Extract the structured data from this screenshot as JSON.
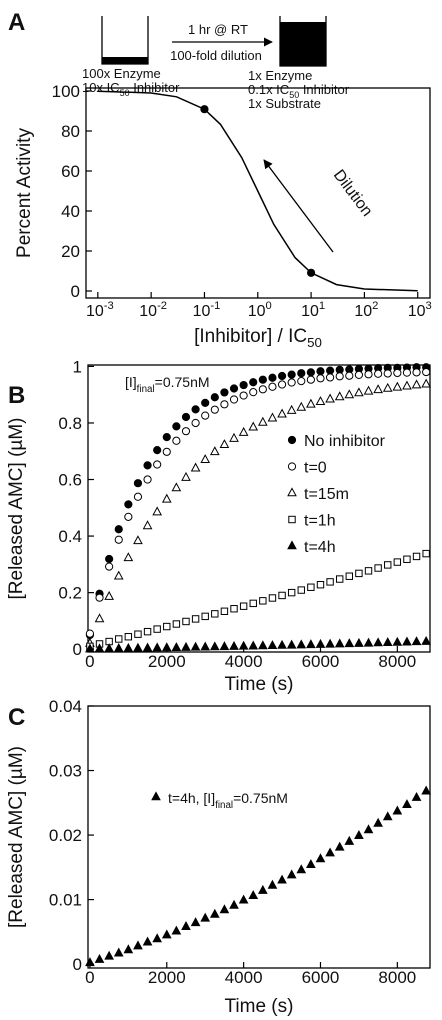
{
  "panel_labels": [
    "A",
    "B",
    "C"
  ],
  "schematic": {
    "arrow_top": "1 hr @ RT",
    "arrow_bottom": "100-fold dilution",
    "left": [
      {
        "text": "100x Enzyme"
      },
      {
        "text": "10x IC",
        "sub": "50",
        "rest": " Inhibitor"
      }
    ],
    "right": [
      {
        "text": "1x Enzyme"
      },
      {
        "text": "0.1x IC",
        "sub": "50",
        "rest": " Inhibitor"
      },
      {
        "text": "1x Substrate"
      }
    ]
  },
  "chart_data": [
    {
      "type": "line",
      "xlabel": {
        "text": "[Inhibitor] / IC",
        "sub": "50"
      },
      "ylabel": "Percent Activity",
      "xlog": true,
      "xlim": [
        0.0006,
        1700
      ],
      "ylim": [
        -3.5,
        101.5
      ],
      "xticks": [
        {
          "value": 0.001,
          "label": "10",
          "sup": "-3"
        },
        {
          "value": 0.01,
          "label": "10",
          "sup": "-2"
        },
        {
          "value": 0.1,
          "label": "10",
          "sup": "-1"
        },
        {
          "value": 1,
          "label": "10",
          "sup": "0"
        },
        {
          "value": 10,
          "label": "10",
          "sup": "1"
        },
        {
          "value": 100,
          "label": "10",
          "sup": "2"
        },
        {
          "value": 1000,
          "label": "10",
          "sup": "3"
        }
      ],
      "yticks": [
        0,
        20,
        40,
        60,
        80,
        100
      ],
      "annotation": "Dilution",
      "series": [
        {
          "color": "#000000",
          "x": [
            0.001,
            0.01,
            0.03,
            0.1,
            0.2,
            0.5,
            1,
            2,
            5,
            10,
            30,
            100,
            1000
          ],
          "values": [
            99.9,
            99.0,
            97.1,
            90.9,
            83.3,
            66.7,
            50.0,
            33.3,
            16.7,
            9.1,
            3.2,
            1.0,
            0.1
          ]
        },
        {
          "color": "#000000",
          "line": false,
          "marker": "circle",
          "filled": true,
          "x": [
            0.1,
            10
          ],
          "values": [
            90.9,
            9.1
          ]
        }
      ]
    },
    {
      "type": "scatter",
      "xlabel": "Time (s)",
      "ylabel": "[Released AMC] (µM)",
      "xlim": [
        -50,
        8850
      ],
      "ylim": [
        -0.01,
        1.005
      ],
      "xticks": [
        0,
        2000,
        4000,
        6000,
        8000
      ],
      "yticks": [
        0,
        0.2,
        0.4,
        0.6,
        0.8,
        1
      ],
      "annotation": {
        "text": "[I]",
        "sub": "final",
        "rest": "=0.75nM"
      },
      "legend": "center-right",
      "x": [
        0,
        250,
        500,
        750,
        1000,
        1250,
        1500,
        1750,
        2000,
        2250,
        2500,
        2750,
        3000,
        3250,
        3500,
        3750,
        4000,
        4250,
        4500,
        4750,
        5000,
        5250,
        5500,
        5750,
        6000,
        6250,
        6500,
        6750,
        7000,
        7250,
        7500,
        7750,
        8000,
        8250,
        8500,
        8750
      ],
      "series": [
        {
          "name": "No inhibitor",
          "color": "#000000",
          "marker": "circle",
          "filled": true,
          "values": [
            0.05,
            0.196,
            0.319,
            0.424,
            0.512,
            0.587,
            0.65,
            0.704,
            0.75,
            0.788,
            0.821,
            0.848,
            0.871,
            0.891,
            0.908,
            0.922,
            0.934,
            0.944,
            0.953,
            0.96,
            0.966,
            0.971,
            0.976,
            0.979,
            0.983,
            0.985,
            0.988,
            0.989,
            0.991,
            0.992,
            0.994,
            0.995,
            0.995,
            0.996,
            0.997,
            0.997
          ]
        },
        {
          "name": "t=0",
          "color": "#000000",
          "marker": "circle",
          "filled": false,
          "values": [
            0.055,
            0.182,
            0.292,
            0.387,
            0.468,
            0.539,
            0.6,
            0.653,
            0.698,
            0.737,
            0.771,
            0.8,
            0.826,
            0.847,
            0.866,
            0.883,
            0.897,
            0.909,
            0.919,
            0.928,
            0.936,
            0.943,
            0.948,
            0.953,
            0.958,
            0.961,
            0.965,
            0.967,
            0.97,
            0.972,
            0.974,
            0.975,
            0.977,
            0.978,
            0.979,
            0.98
          ]
        },
        {
          "name": "t=15m",
          "color": "#000000",
          "marker": "triangle",
          "filled": false,
          "values": [
            0.02,
            0.107,
            0.186,
            0.258,
            0.323,
            0.383,
            0.436,
            0.485,
            0.53,
            0.57,
            0.607,
            0.64,
            0.67,
            0.698,
            0.723,
            0.745,
            0.766,
            0.785,
            0.802,
            0.817,
            0.831,
            0.844,
            0.855,
            0.866,
            0.875,
            0.884,
            0.892,
            0.899,
            0.906,
            0.912,
            0.917,
            0.922,
            0.926,
            0.93,
            0.934,
            0.937
          ]
        },
        {
          "name": "t=1h",
          "color": "#000000",
          "marker": "square",
          "filled": false,
          "values": [
            0.01,
            0.0185,
            0.027,
            0.036,
            0.044,
            0.053,
            0.062,
            0.071,
            0.08,
            0.089,
            0.098,
            0.107,
            0.116,
            0.125,
            0.134,
            0.143,
            0.152,
            0.162,
            0.171,
            0.181,
            0.19,
            0.2,
            0.209,
            0.219,
            0.228,
            0.238,
            0.248,
            0.258,
            0.268,
            0.277,
            0.287,
            0.298,
            0.308,
            0.318,
            0.328,
            0.338
          ]
        },
        {
          "name": "t=4h",
          "color": "#000000",
          "marker": "triangle",
          "filled": true,
          "values": [
            0.0002,
            0.0007,
            0.0012,
            0.0017,
            0.0022,
            0.0028,
            0.0034,
            0.0039,
            0.0045,
            0.0051,
            0.0058,
            0.0064,
            0.0071,
            0.0077,
            0.0084,
            0.0091,
            0.0099,
            0.0106,
            0.0114,
            0.0122,
            0.013,
            0.0138,
            0.0146,
            0.0154,
            0.0163,
            0.0172,
            0.0181,
            0.019,
            0.0199,
            0.0208,
            0.0218,
            0.0228,
            0.0237,
            0.0247,
            0.0258,
            0.0268
          ]
        }
      ]
    },
    {
      "type": "scatter",
      "xlabel": "Time (s)",
      "ylabel": "[Released AMC] (µM)",
      "xlim": [
        -50,
        8850
      ],
      "ylim": [
        -0.0006,
        0.04
      ],
      "xticks": [
        0,
        2000,
        4000,
        6000,
        8000
      ],
      "yticks": [
        0,
        0.01,
        0.02,
        0.03,
        0.04
      ],
      "legend": "upper-center",
      "note": {
        "text": ", [I]",
        "sub": "final",
        "rest": "=0.75nM"
      },
      "x": [
        0,
        250,
        500,
        750,
        1000,
        1250,
        1500,
        1750,
        2000,
        2250,
        2500,
        2750,
        3000,
        3250,
        3500,
        3750,
        4000,
        4250,
        4500,
        4750,
        5000,
        5250,
        5500,
        5750,
        6000,
        6250,
        6500,
        6750,
        7000,
        7250,
        7500,
        7750,
        8000,
        8250,
        8500,
        8750
      ],
      "series": [
        {
          "name": "t=4h",
          "color": "#000000",
          "marker": "triangle",
          "filled": true,
          "values": [
            0.0002,
            0.0007,
            0.0012,
            0.0017,
            0.0022,
            0.0028,
            0.0034,
            0.0039,
            0.0045,
            0.0051,
            0.0058,
            0.0064,
            0.0071,
            0.0077,
            0.0084,
            0.0091,
            0.0099,
            0.0106,
            0.0114,
            0.0122,
            0.013,
            0.0138,
            0.0146,
            0.0154,
            0.0163,
            0.0172,
            0.0181,
            0.019,
            0.0199,
            0.0208,
            0.0218,
            0.0228,
            0.0237,
            0.0247,
            0.0258,
            0.0268
          ]
        }
      ]
    }
  ]
}
